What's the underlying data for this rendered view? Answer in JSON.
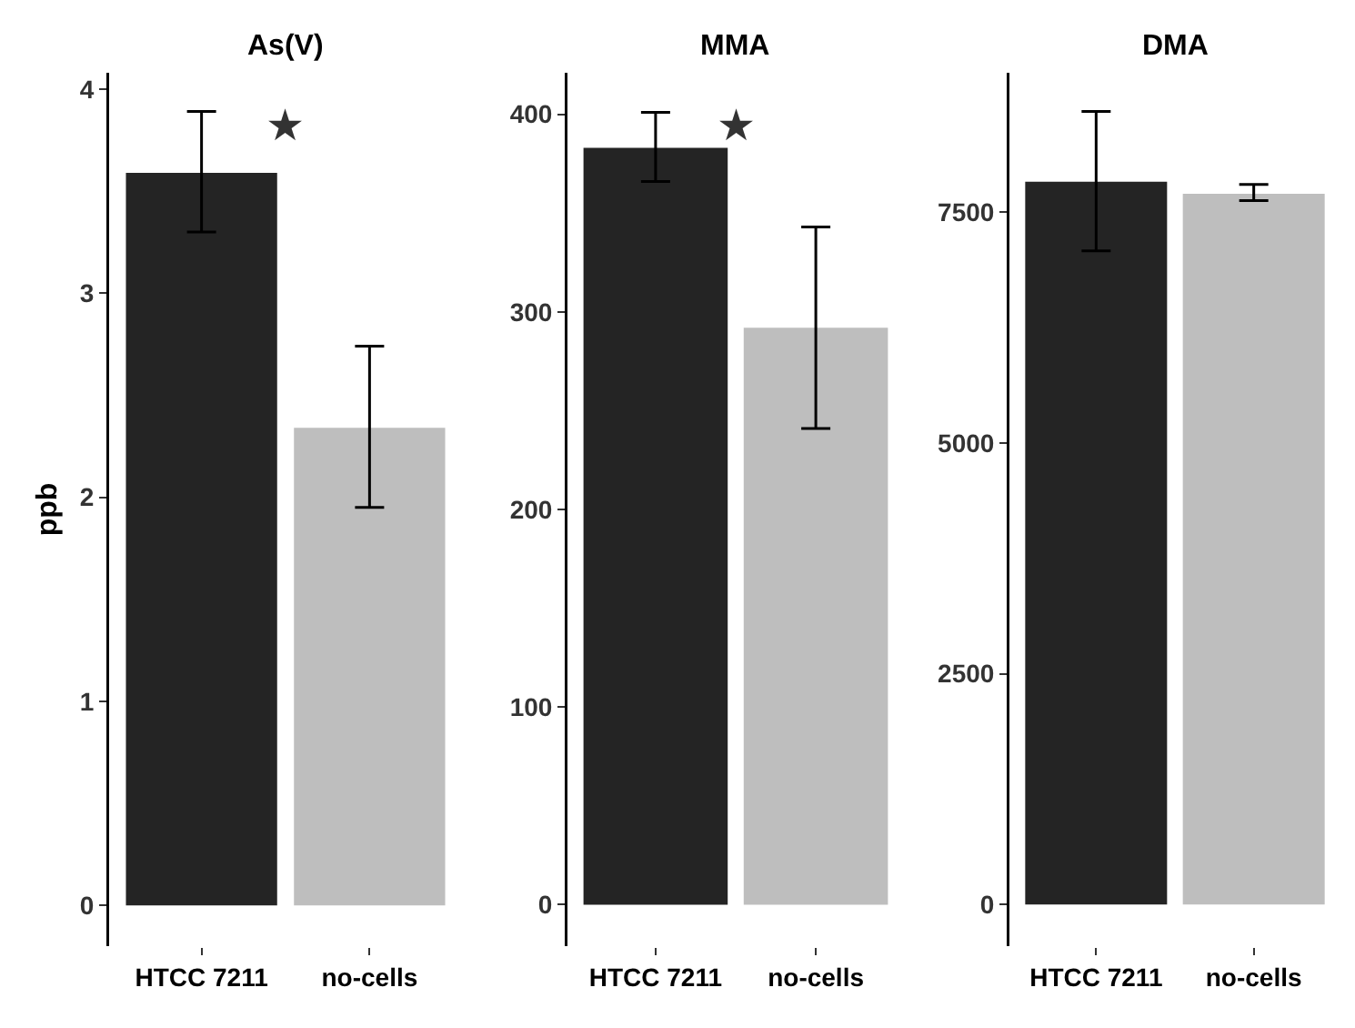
{
  "chart_data": [
    {
      "type": "bar",
      "title": "As(V)",
      "ylabel": "ppb",
      "categories": [
        "HTCC 7211",
        "no-cells"
      ],
      "values": [
        3.59,
        2.34
      ],
      "colors": [
        "#242424",
        "#bebebe"
      ],
      "errors": [
        [
          3.3,
          3.89
        ],
        [
          1.95,
          2.74
        ]
      ],
      "ylim": [
        -0.2,
        4.08
      ],
      "yticks": [
        0,
        1,
        2,
        3,
        4
      ],
      "grid": false,
      "legend": false,
      "annotations": [
        "★"
      ]
    },
    {
      "type": "bar",
      "title": "MMA",
      "categories": [
        "HTCC 7211",
        "no-cells"
      ],
      "values": [
        383,
        292
      ],
      "colors": [
        "#242424",
        "#bebebe"
      ],
      "errors": [
        [
          366,
          401
        ],
        [
          241,
          343
        ]
      ],
      "ylim": [
        -21,
        421
      ],
      "yticks": [
        0,
        100,
        200,
        300,
        400
      ],
      "grid": false,
      "legend": false,
      "annotations": [
        "★"
      ]
    },
    {
      "type": "bar",
      "title": "DMA",
      "categories": [
        "HTCC 7211",
        "no-cells"
      ],
      "values": [
        7830,
        7700
      ],
      "colors": [
        "#242424",
        "#bebebe"
      ],
      "errors": [
        [
          7080,
          8590
        ],
        [
          7625,
          7800
        ]
      ],
      "ylim": [
        -450,
        9010
      ],
      "yticks": [
        0,
        2500,
        5000,
        7500
      ],
      "grid": false,
      "legend": false
    }
  ]
}
